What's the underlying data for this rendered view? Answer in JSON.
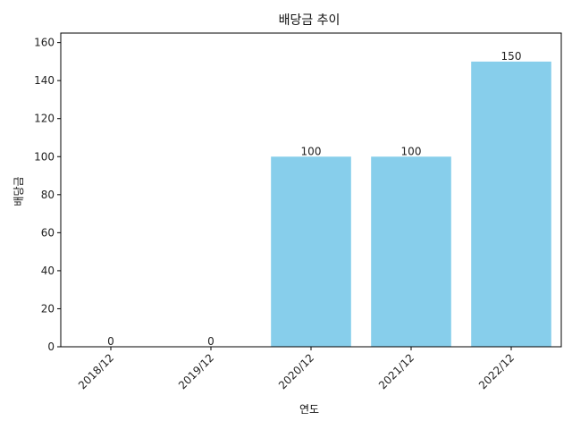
{
  "chart_data": {
    "type": "bar",
    "title": "배당금 추이",
    "xlabel": "연도",
    "ylabel": "배당금",
    "categories": [
      "2018/12",
      "2019/12",
      "2020/12",
      "2021/12",
      "2022/12"
    ],
    "values": [
      0,
      0,
      100,
      100,
      150
    ],
    "data_labels": [
      "0",
      "0",
      "100",
      "100",
      "150"
    ],
    "ylim": [
      0,
      165
    ],
    "yticks": [
      0,
      20,
      40,
      60,
      80,
      100,
      120,
      140,
      160
    ],
    "grid": false,
    "legend": "none",
    "bar_color": "#87ceeb",
    "x_tick_rotation": 45
  }
}
